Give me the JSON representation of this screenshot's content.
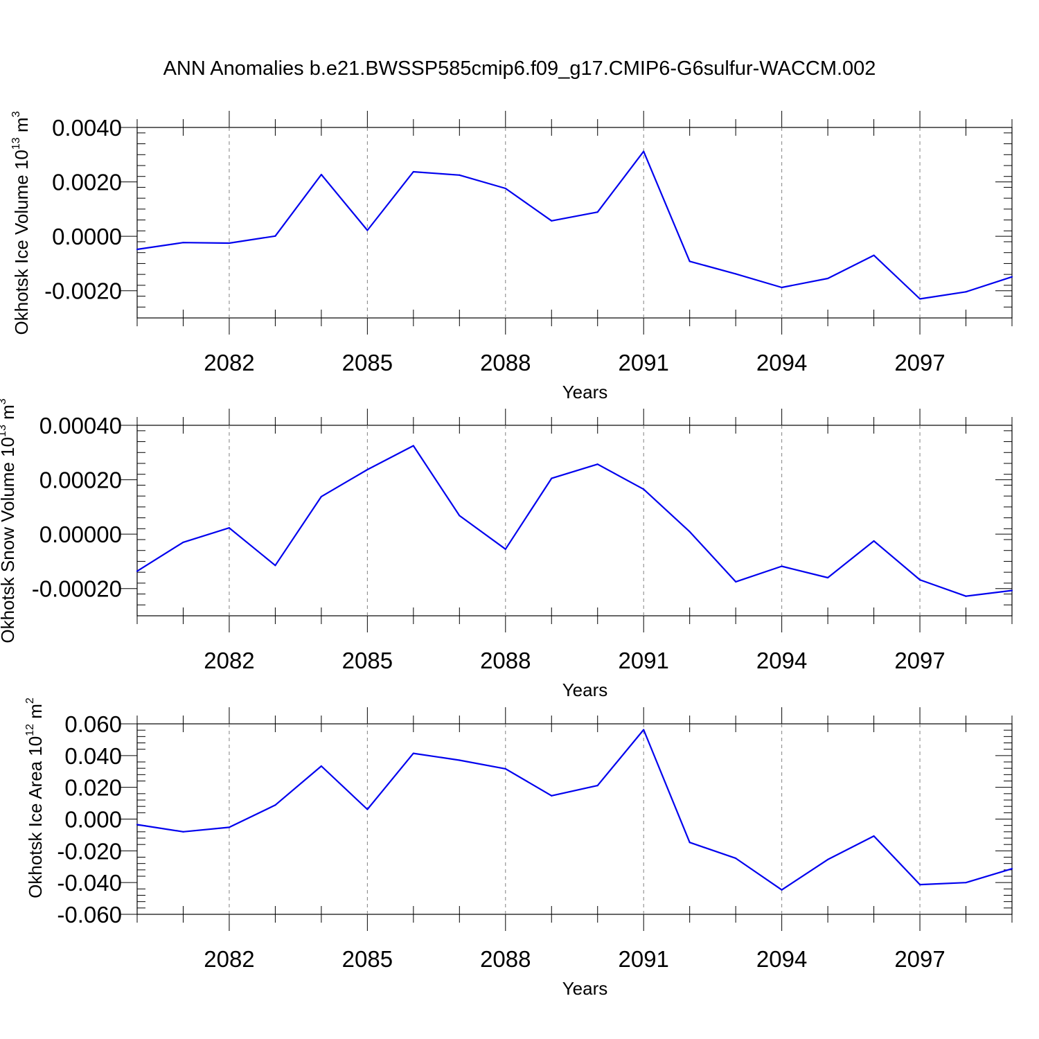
{
  "title": "ANN Anomalies b.e21.BWSSP585cmip6.f09_g17.CMIP6-G6sulfur-WACCM.002",
  "chart_data": [
    {
      "type": "line",
      "ylabel": "Okhotsk Ice Volume 10",
      "ylabel_exp": "13",
      "ylabel_unit": " m",
      "ylabel_unit_exp": "3",
      "xlabel": "Years",
      "ylim": [
        -0.003,
        0.004
      ],
      "yticks": [
        0.004,
        0.002,
        0.0,
        -0.002
      ],
      "ytick_labels": [
        "0.0040",
        "0.0020",
        "0.0000",
        "-0.0020"
      ],
      "xlim": [
        2080,
        2099
      ],
      "xticks": [
        2082,
        2085,
        2088,
        2091,
        2094,
        2097
      ],
      "xtick_labels": [
        "2082",
        "2085",
        "2088",
        "2091",
        "2094",
        "2097"
      ],
      "grid": "vertical-dashed",
      "series": [
        {
          "name": "Okhotsk Ice Volume",
          "color": "#0000ee",
          "x": [
            2080,
            2081,
            2082,
            2083,
            2084,
            2085,
            2086,
            2087,
            2088,
            2089,
            2090,
            2091,
            2092,
            2093,
            2094,
            2095,
            2096,
            2097,
            2098,
            2099
          ],
          "values": [
            -0.00048,
            -0.00023,
            -0.00025,
            1e-05,
            0.00227,
            0.00022,
            0.00237,
            0.00225,
            0.00176,
            0.00057,
            0.00089,
            0.00312,
            -0.00092,
            -0.00138,
            -0.00188,
            -0.00155,
            -0.0007,
            -0.0023,
            -0.00204,
            -0.00149
          ]
        }
      ]
    },
    {
      "type": "line",
      "ylabel": "Okhotsk Snow Volume 10",
      "ylabel_exp": "13",
      "ylabel_unit": " m",
      "ylabel_unit_exp": "3",
      "xlabel": "Years",
      "ylim": [
        -0.0003,
        0.0004
      ],
      "yticks": [
        0.0004,
        0.0002,
        0.0,
        -0.0002
      ],
      "ytick_labels": [
        "0.00040",
        "0.00020",
        "0.00000",
        "-0.00020"
      ],
      "xlim": [
        2080,
        2099
      ],
      "xticks": [
        2082,
        2085,
        2088,
        2091,
        2094,
        2097
      ],
      "xtick_labels": [
        "2082",
        "2085",
        "2088",
        "2091",
        "2094",
        "2097"
      ],
      "grid": "vertical-dashed",
      "series": [
        {
          "name": "Okhotsk Snow Volume",
          "color": "#0000ee",
          "x": [
            2080,
            2081,
            2082,
            2083,
            2084,
            2085,
            2086,
            2087,
            2088,
            2089,
            2090,
            2091,
            2092,
            2093,
            2094,
            2095,
            2096,
            2097,
            2098,
            2099
          ],
          "values": [
            -0.000136,
            -3e-05,
            2.3e-05,
            -0.000115,
            0.000138,
            0.000237,
            0.000325,
            6.8e-05,
            -5.5e-05,
            0.000205,
            0.000257,
            0.000165,
            9e-06,
            -0.000175,
            -0.000118,
            -0.00016,
            -2.5e-05,
            -0.000168,
            -0.000228,
            -0.000207
          ]
        }
      ]
    },
    {
      "type": "line",
      "ylabel": "Okhotsk Ice Area 10",
      "ylabel_exp": "12",
      "ylabel_unit": " m",
      "ylabel_unit_exp": "2",
      "xlabel": "Years",
      "ylim": [
        -0.06,
        0.06
      ],
      "yticks": [
        0.06,
        0.04,
        0.02,
        0.0,
        -0.02,
        -0.04,
        -0.06
      ],
      "ytick_labels": [
        "0.060",
        "0.040",
        "0.020",
        "0.000",
        "-0.020",
        "-0.040",
        "-0.060"
      ],
      "xlim": [
        2080,
        2099
      ],
      "xticks": [
        2082,
        2085,
        2088,
        2091,
        2094,
        2097
      ],
      "xtick_labels": [
        "2082",
        "2085",
        "2088",
        "2091",
        "2094",
        "2097"
      ],
      "grid": "vertical-dashed",
      "series": [
        {
          "name": "Okhotsk Ice Area",
          "color": "#0000ee",
          "x": [
            2080,
            2081,
            2082,
            2083,
            2084,
            2085,
            2086,
            2087,
            2088,
            2089,
            2090,
            2091,
            2092,
            2093,
            2094,
            2095,
            2096,
            2097,
            2098,
            2099
          ],
          "values": [
            -0.0035,
            -0.008,
            -0.0052,
            0.0088,
            0.0334,
            0.0061,
            0.0414,
            0.0371,
            0.0317,
            0.0147,
            0.0211,
            0.0563,
            -0.0147,
            -0.0247,
            -0.0446,
            -0.0255,
            -0.0107,
            -0.0413,
            -0.04,
            -0.0313
          ]
        }
      ]
    }
  ]
}
